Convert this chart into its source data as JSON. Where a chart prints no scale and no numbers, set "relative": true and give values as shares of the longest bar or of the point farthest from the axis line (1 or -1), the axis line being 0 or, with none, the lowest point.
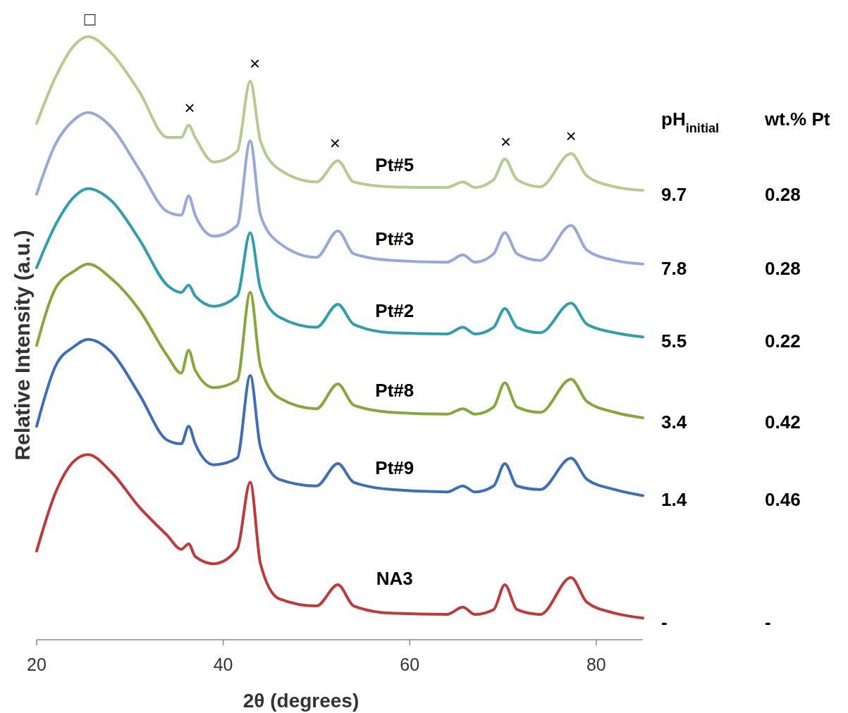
{
  "chart_data": {
    "type": "line",
    "relative": true,
    "xlabel": "2θ (degrees)",
    "ylabel": "Relative Intensity (a.u.)",
    "xlim": [
      20,
      85
    ],
    "xticks": [
      20,
      40,
      60,
      80
    ],
    "grid": false,
    "marker": "none",
    "line_style": "solid",
    "x": [
      20,
      22,
      24,
      25.5,
      28,
      31,
      34,
      35.5,
      36.3,
      37,
      39,
      41.5,
      42.9,
      44,
      46,
      50,
      52.3,
      54,
      58,
      64,
      65.7,
      67,
      69,
      70.2,
      71.5,
      74,
      77.3,
      79,
      82,
      85
    ],
    "series": [
      {
        "name": "Pt#5",
        "color": "#b5cc8e",
        "values": [
          0.856,
          0.932,
          0.985,
          1.0,
          0.973,
          0.909,
          0.833,
          0.833,
          0.853,
          0.833,
          0.792,
          0.81,
          0.926,
          0.827,
          0.78,
          0.759,
          0.794,
          0.759,
          0.751,
          0.75,
          0.759,
          0.75,
          0.763,
          0.797,
          0.763,
          0.751,
          0.806,
          0.769,
          0.751,
          0.745
        ]
      },
      {
        "name": "Pt#3",
        "color": "#96a9d8",
        "values": [
          0.739,
          0.821,
          0.862,
          0.874,
          0.85,
          0.78,
          0.71,
          0.704,
          0.736,
          0.704,
          0.669,
          0.687,
          0.827,
          0.704,
          0.658,
          0.634,
          0.678,
          0.64,
          0.629,
          0.626,
          0.638,
          0.626,
          0.64,
          0.675,
          0.64,
          0.629,
          0.687,
          0.646,
          0.629,
          0.623
        ]
      },
      {
        "name": "Pt#2",
        "color": "#2f9fb0",
        "values": [
          0.617,
          0.687,
          0.734,
          0.748,
          0.728,
          0.664,
          0.588,
          0.576,
          0.588,
          0.57,
          0.553,
          0.57,
          0.675,
          0.582,
          0.535,
          0.518,
          0.556,
          0.523,
          0.509,
          0.507,
          0.518,
          0.507,
          0.518,
          0.549,
          0.518,
          0.509,
          0.558,
          0.523,
          0.509,
          0.502
        ]
      },
      {
        "name": "Pt#8",
        "color": "#86a83a",
        "values": [
          0.488,
          0.582,
          0.611,
          0.623,
          0.599,
          0.547,
          0.471,
          0.442,
          0.48,
          0.447,
          0.418,
          0.43,
          0.576,
          0.453,
          0.401,
          0.383,
          0.424,
          0.389,
          0.377,
          0.374,
          0.383,
          0.374,
          0.386,
          0.426,
          0.386,
          0.377,
          0.432,
          0.395,
          0.377,
          0.368
        ]
      },
      {
        "name": "Pt#9",
        "color": "#3d6fb8",
        "values": [
          0.354,
          0.453,
          0.486,
          0.498,
          0.477,
          0.407,
          0.331,
          0.325,
          0.354,
          0.325,
          0.29,
          0.301,
          0.438,
          0.319,
          0.266,
          0.255,
          0.292,
          0.261,
          0.249,
          0.245,
          0.255,
          0.245,
          0.255,
          0.292,
          0.255,
          0.249,
          0.301,
          0.266,
          0.249,
          0.239
        ]
      },
      {
        "name": "NA3",
        "color": "#c0393b",
        "values": [
          0.147,
          0.243,
          0.296,
          0.307,
          0.278,
          0.22,
          0.173,
          0.15,
          0.159,
          0.138,
          0.126,
          0.15,
          0.261,
          0.126,
          0.068,
          0.056,
          0.091,
          0.056,
          0.044,
          0.042,
          0.054,
          0.042,
          0.05,
          0.091,
          0.05,
          0.042,
          0.103,
          0.062,
          0.044,
          0.036
        ]
      }
    ],
    "annotations": [
      {
        "text": "□",
        "x": 25.7,
        "y": 1.0
      },
      {
        "text": "×",
        "x": 36.4,
        "y": 0.853
      },
      {
        "text": "×",
        "x": 43.4,
        "y": 0.926
      },
      {
        "text": "×",
        "x": 52.0,
        "y": 0.794
      },
      {
        "text": "×",
        "x": 70.3,
        "y": 0.797
      },
      {
        "text": "×",
        "x": 77.3,
        "y": 0.806
      },
      "pH$_{initial}$",
      "wt.% Pt",
      "9.7",
      "0.28",
      "7.8",
      "0.28",
      "5.5",
      "0.22",
      "3.4",
      "0.42",
      "1.4",
      "0.46",
      "-",
      "-"
    ]
  }
}
